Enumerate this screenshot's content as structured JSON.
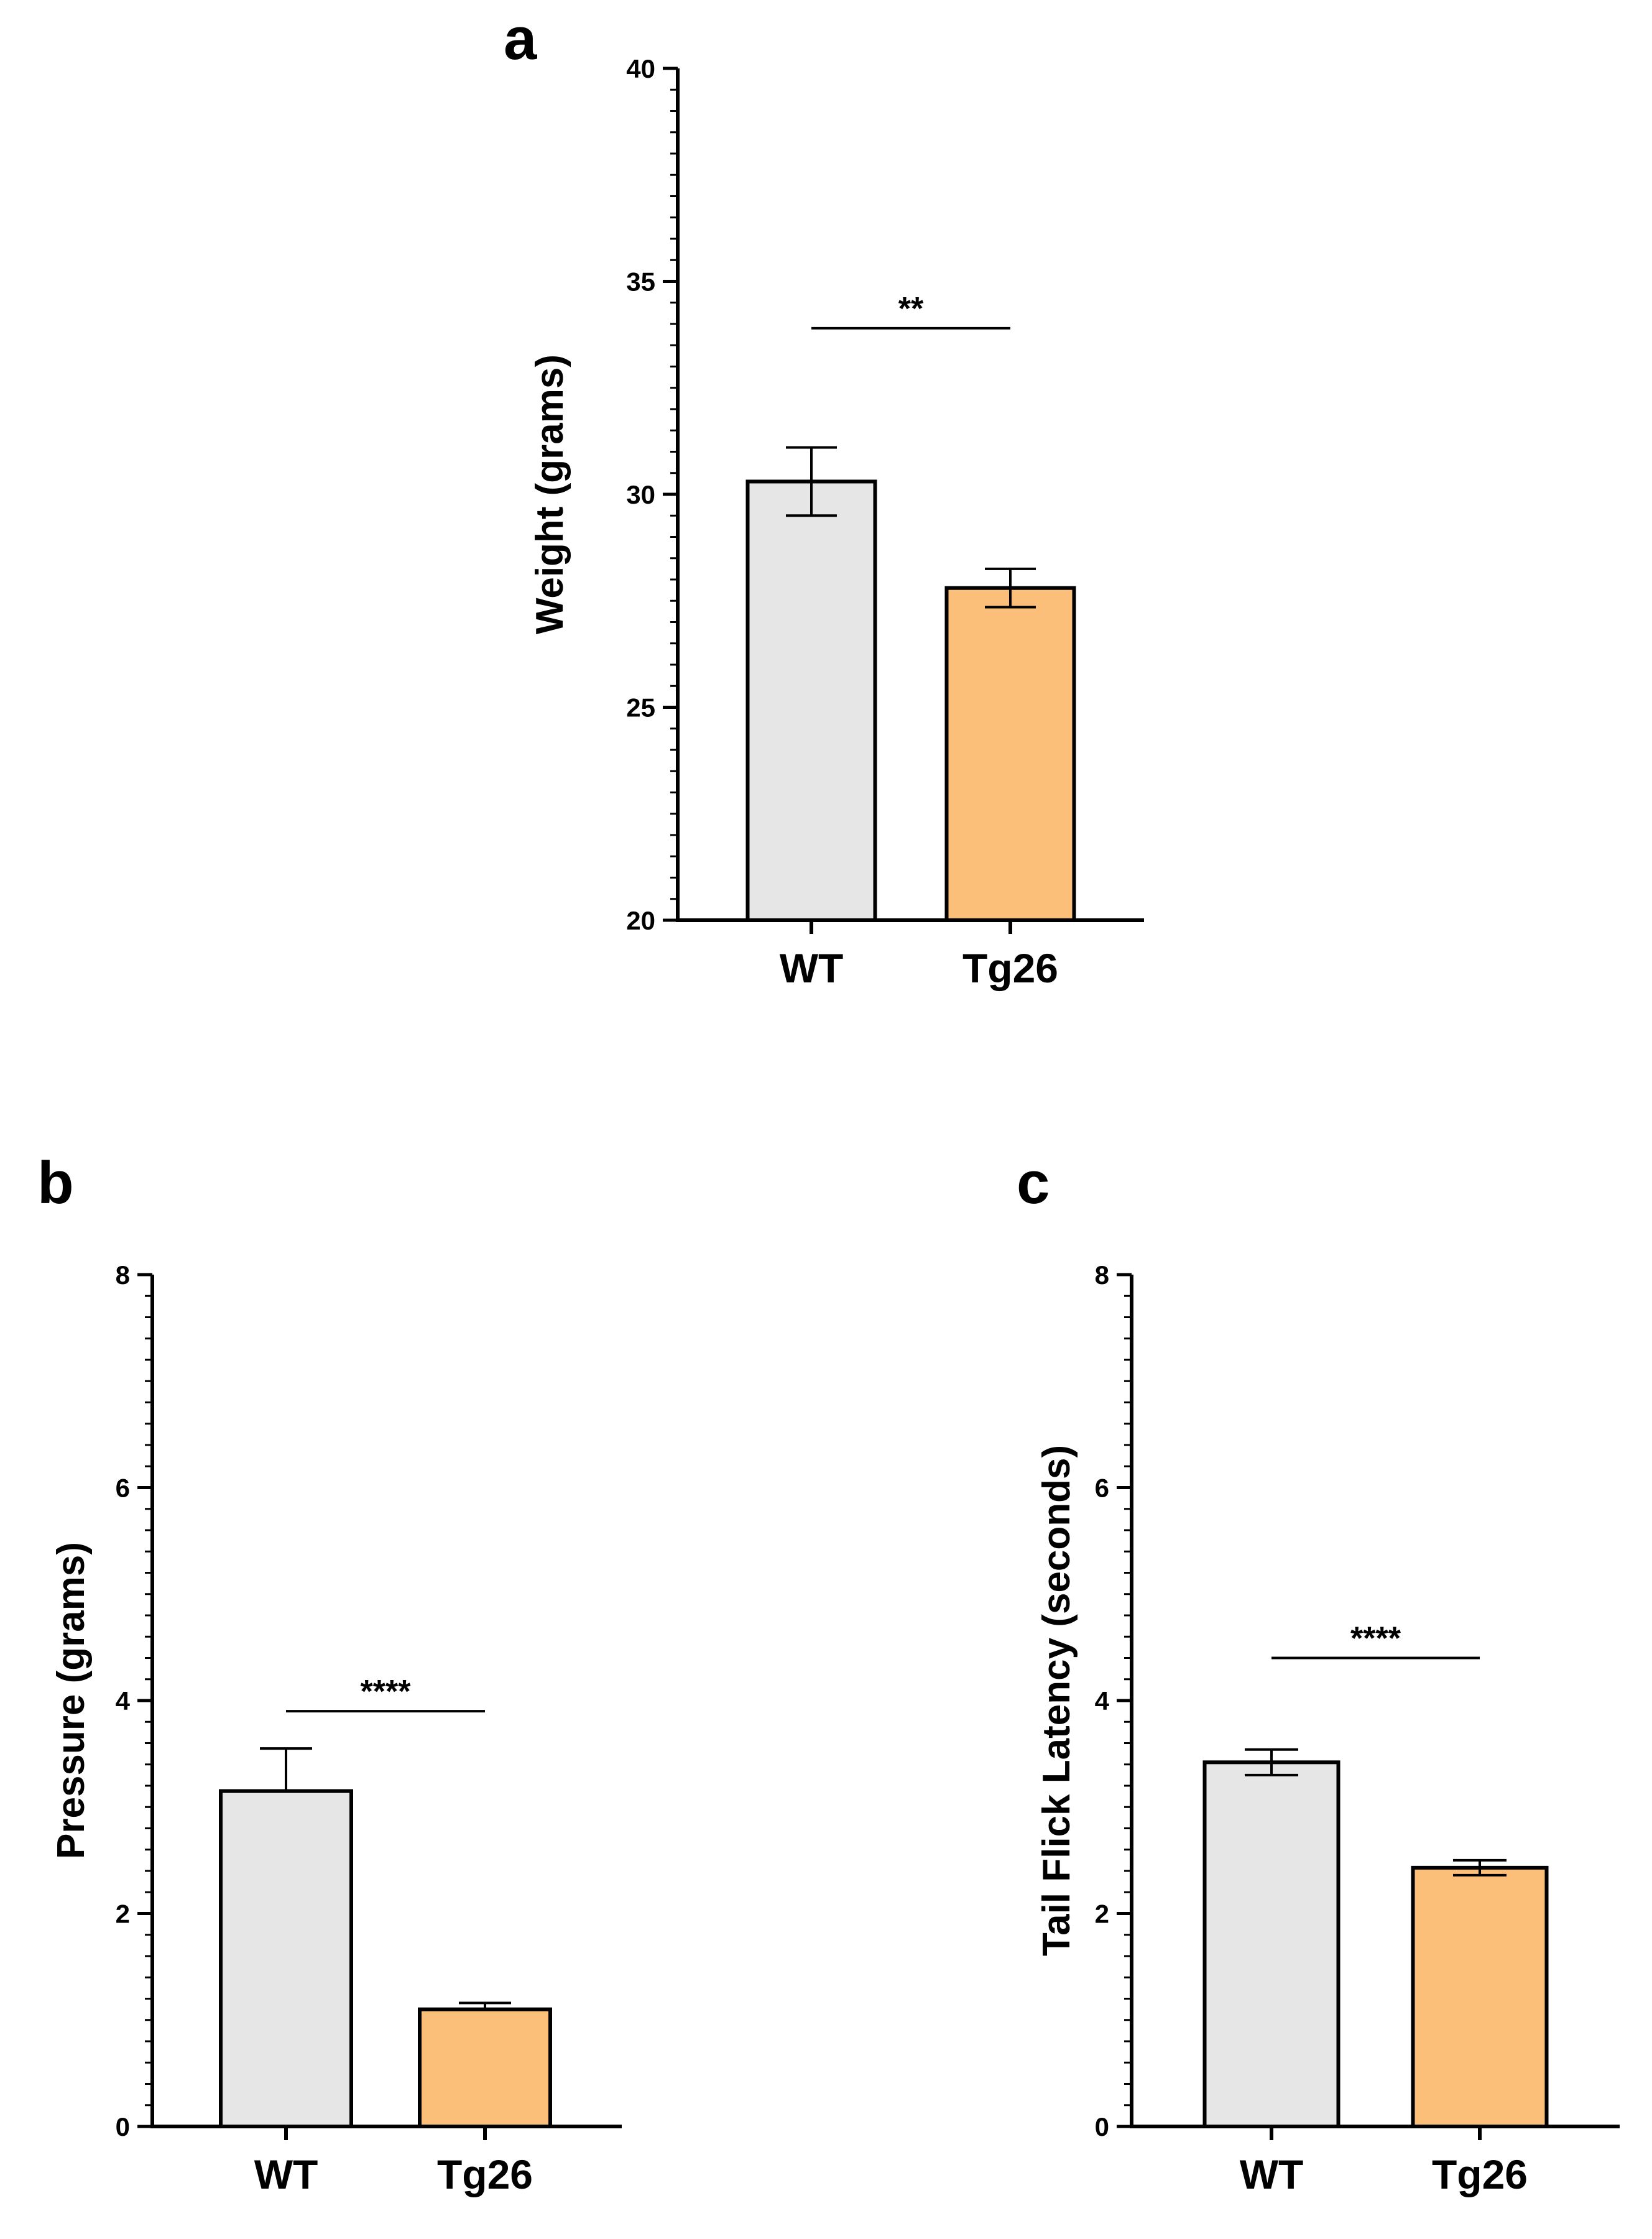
{
  "figure": {
    "title": ""
  },
  "colors": {
    "WT": "#e6e6e6",
    "Tg26": "#fbbf7a",
    "stroke": "#000000"
  },
  "chart_data": [
    {
      "panel": "a",
      "type": "bar",
      "categories": [
        "WT",
        "Tg26"
      ],
      "values": [
        30.3,
        27.8
      ],
      "errors": [
        0.8,
        0.45
      ],
      "ylabel": "Weight (grams)",
      "xlabel": "",
      "ylim": [
        20,
        40
      ],
      "yticks": [
        20,
        25,
        30,
        35,
        40
      ],
      "minor_tick_step": 0.5,
      "significance": {
        "label": "**",
        "value": 33.9
      }
    },
    {
      "panel": "b",
      "type": "bar",
      "categories": [
        "WT",
        "Tg26"
      ],
      "values": [
        3.15,
        1.1
      ],
      "errors": [
        0.4,
        0.06
      ],
      "error_direction": "up",
      "ylabel": "Pressure (grams)",
      "xlabel": "",
      "ylim": [
        0,
        8
      ],
      "yticks": [
        0,
        2,
        4,
        6,
        8
      ],
      "minor_tick_step": 0.2,
      "significance": {
        "label": "****",
        "value": 3.9
      }
    },
    {
      "panel": "c",
      "type": "bar",
      "categories": [
        "WT",
        "Tg26"
      ],
      "values": [
        3.42,
        2.43
      ],
      "errors": [
        0.12,
        0.07
      ],
      "ylabel": "Tail Flick Latency (seconds)",
      "xlabel": "",
      "ylim": [
        0,
        8
      ],
      "yticks": [
        0,
        2,
        4,
        6,
        8
      ],
      "minor_tick_step": 0.2,
      "significance": {
        "label": "****",
        "value": 4.4
      }
    }
  ]
}
